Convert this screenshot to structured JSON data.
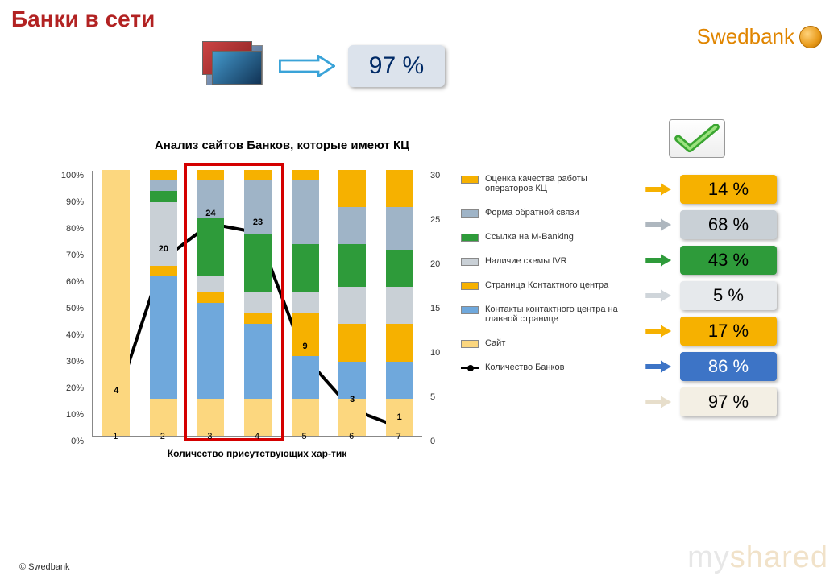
{
  "title": "Банки в сети",
  "brand": "Swedbank",
  "copyright": "© Swedbank",
  "watermark_my": "my",
  "watermark_shared": "shared",
  "hero_badge": {
    "text": "97 %",
    "bg": "#dce3ec",
    "fg": "#002a66"
  },
  "chart": {
    "title": "Анализ сайтов Банков, которые имеют КЦ",
    "type": "stacked-bar + line (dual axis)",
    "xaxis_title": "Количество присутствующих хар-тик",
    "categories": [
      "1",
      "2",
      "3",
      "4",
      "5",
      "6",
      "7"
    ],
    "y_left": {
      "min": 0,
      "max": 100,
      "step": 10,
      "suffix": "%"
    },
    "y_right": {
      "min": 0,
      "max": 30,
      "step": 5,
      "suffix": ""
    },
    "highlight_cols": [
      3,
      4
    ],
    "series_colors": {
      "site": "#fcd77f",
      "contacts": "#6fa8dc",
      "cc_page": "#f6b100",
      "ivr": "#c9d0d6",
      "mbanking": "#2e9b3a",
      "feedback": "#9fb4c7",
      "quality": "#f6b100"
    },
    "stacks": [
      {
        "site": 100
      },
      {
        "site": 14,
        "contacts": 46,
        "cc_page": 4,
        "ivr": 24,
        "mbanking": 4,
        "feedback": 4,
        "quality": 4
      },
      {
        "site": 14,
        "contacts": 36,
        "cc_page": 4,
        "ivr": 6,
        "mbanking": 22,
        "feedback": 14,
        "quality": 4
      },
      {
        "site": 14,
        "contacts": 28,
        "cc_page": 4,
        "ivr": 8,
        "mbanking": 22,
        "feedback": 20,
        "quality": 4
      },
      {
        "site": 14,
        "contacts": 16,
        "cc_page": 16,
        "ivr": 8,
        "mbanking": 18,
        "feedback": 24,
        "quality": 4
      },
      {
        "site": 14,
        "contacts": 14,
        "cc_page": 14,
        "ivr": 14,
        "mbanking": 16,
        "feedback": 14,
        "quality": 14
      },
      {
        "site": 14,
        "contacts": 14,
        "cc_page": 14,
        "ivr": 14,
        "mbanking": 14,
        "feedback": 16,
        "quality": 14
      }
    ],
    "line": {
      "label": "Количество Банков",
      "color": "#000000",
      "values": [
        4,
        20,
        24,
        23,
        9,
        3,
        1
      ]
    },
    "legend": [
      {
        "key": "quality",
        "label": "Оценка качества работы операторов КЦ"
      },
      {
        "key": "feedback",
        "label": "Форма обратной связи"
      },
      {
        "key": "mbanking",
        "label": "Ссылка на M-Banking"
      },
      {
        "key": "ivr",
        "label": "Наличие схемы IVR"
      },
      {
        "key": "cc_page",
        "label": "Страница Контактного центра"
      },
      {
        "key": "contacts",
        "label": "Контакты контактного центра на главной странице"
      },
      {
        "key": "site",
        "label": "Сайт"
      }
    ]
  },
  "value_badges": [
    {
      "text": "14 %",
      "bg": "#f6b100",
      "fg": "#000000",
      "arrow": "#f6b100"
    },
    {
      "text": "68 %",
      "bg": "#c9d0d6",
      "fg": "#000000",
      "arrow": "#aeb7bf"
    },
    {
      "text": "43 %",
      "bg": "#2e9b3a",
      "fg": "#000000",
      "arrow": "#2e9b3a"
    },
    {
      "text": "5  %",
      "bg": "#e6e9ec",
      "fg": "#000000",
      "arrow": "#cfd5da"
    },
    {
      "text": "17 %",
      "bg": "#f6b100",
      "fg": "#000000",
      "arrow": "#f6b100"
    },
    {
      "text": "86 %",
      "bg": "#3d74c6",
      "fg": "#ffffff",
      "arrow": "#3d74c6"
    },
    {
      "text": "97 %",
      "bg": "#f3efe4",
      "fg": "#000000",
      "arrow": "#e7decb"
    }
  ]
}
